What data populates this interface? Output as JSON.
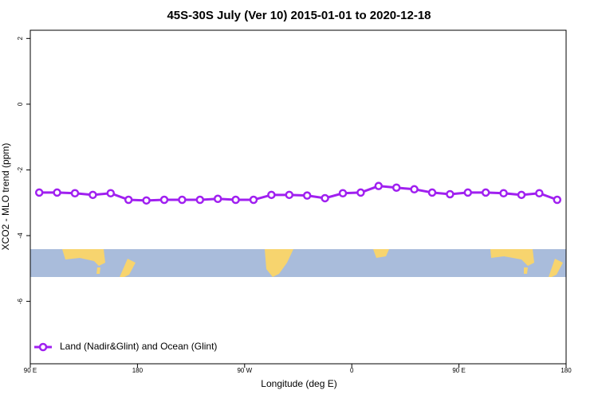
{
  "chart_data": {
    "type": "line",
    "title": "45S-30S July (Ver 10)   2015-01-01 to 2020-12-18",
    "x_label": "Longitude (deg E)",
    "y_label": "XCO2 - MLO trend (ppm)",
    "xlim": [
      90,
      540
    ],
    "ylim": [
      -7.9,
      2.25
    ],
    "xticks": [
      {
        "value": 90,
        "label": "90 E"
      },
      180,
      {
        "value": 270,
        "label": "90 W"
      },
      {
        "value": 360,
        "label": "0"
      },
      {
        "value": 450,
        "label": "90 E"
      },
      {
        "value": 540,
        "label": "180"
      }
    ],
    "yticks": [
      2,
      0,
      -2,
      -4,
      -6
    ],
    "legend": "bottomleft",
    "grid": false,
    "x": [
      97.5,
      112.5,
      127.5,
      142.5,
      157.5,
      172.5,
      187.5,
      202.5,
      217.5,
      232.5,
      247.5,
      262.5,
      277.5,
      292.5,
      307.5,
      322.5,
      337.5,
      352.5,
      367.5,
      382.5,
      397.5,
      412.5,
      427.5,
      442.5,
      457.5,
      472.5,
      487.5,
      502.5,
      517.5,
      532.5
    ],
    "series": [
      {
        "name": "Land (Nadir&Glint) and Ocean (Glint)",
        "color": "#a020f0",
        "values": [
          -2.69,
          -2.69,
          -2.71,
          -2.76,
          -2.71,
          -2.91,
          -2.93,
          -2.91,
          -2.91,
          -2.91,
          -2.88,
          -2.91,
          -2.91,
          -2.76,
          -2.76,
          -2.78,
          -2.86,
          -2.71,
          -2.69,
          -2.49,
          -2.54,
          -2.59,
          -2.69,
          -2.74,
          -2.69,
          -2.69,
          -2.71,
          -2.76,
          -2.71,
          -2.91
        ]
      }
    ]
  }
}
